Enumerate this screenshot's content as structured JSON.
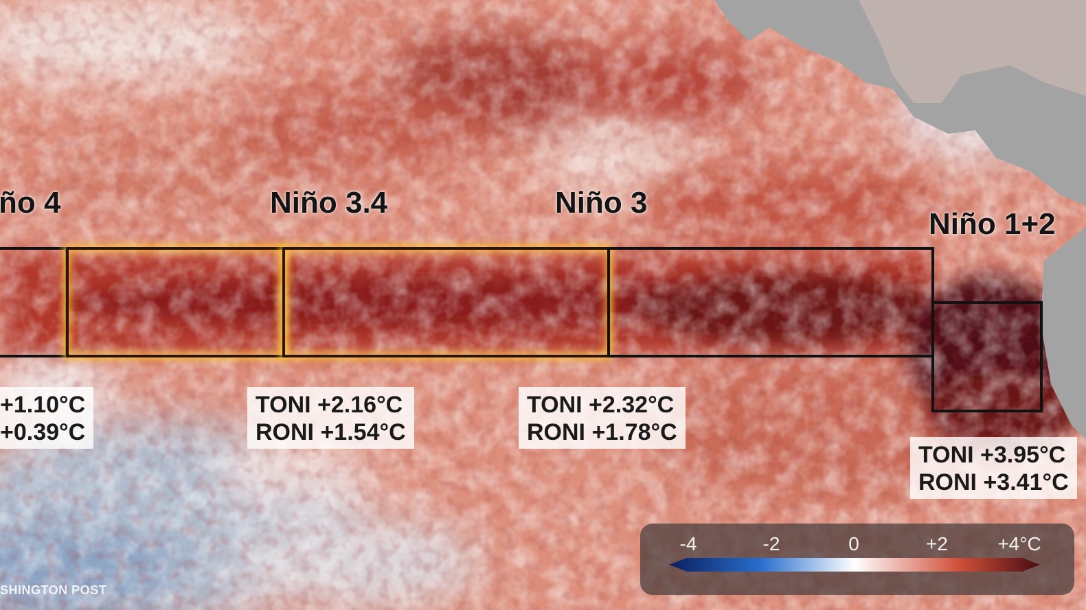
{
  "regions": {
    "nino4": {
      "title": "ño 4",
      "toni": "+1.10°C",
      "roni": "+0.39°C"
    },
    "nino34": {
      "title": "Niño 3.4",
      "toni": "TONI +2.16°C",
      "roni": "RONI +1.54°C"
    },
    "nino3": {
      "title": "Niño 3",
      "toni": "TONI +2.32°C",
      "roni": "RONI +1.78°C"
    },
    "nino12": {
      "title": "Niño 1+2",
      "toni": "TONI +3.95°C",
      "roni": "RONI +3.41°C"
    }
  },
  "legend": {
    "ticks": [
      "-4",
      "-2",
      "0",
      "+2",
      "+4°C"
    ],
    "colors": {
      "cold_end": "#0b1f5c",
      "cold": "#2a6fcf",
      "neutral": "#ffffff",
      "warm": "#d0503a",
      "hot_end": "#4a0c12"
    }
  },
  "credit": "SHINGTON POST",
  "colors": {
    "land": "#a3a3a3",
    "box_outline": "#111111",
    "highlight_glow": "#ffc43c"
  }
}
